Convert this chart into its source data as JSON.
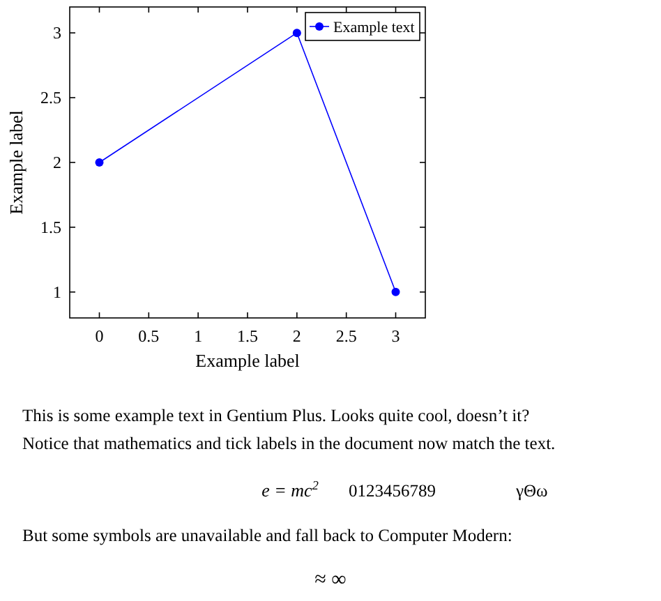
{
  "chart_data": {
    "type": "line",
    "xlabel": "Example label",
    "ylabel": "Example label",
    "x": [
      0,
      2,
      3
    ],
    "series": [
      {
        "name": "Example text",
        "color": "#0000ff",
        "values": [
          2,
          3,
          1
        ]
      }
    ],
    "xlim": [
      -0.3,
      3.3
    ],
    "xticks": [
      0,
      0.5,
      1,
      1.5,
      2,
      2.5,
      3
    ],
    "ylim": [
      0.8,
      3.2
    ],
    "yticks": [
      1,
      1.5,
      2,
      2.5,
      3
    ],
    "grid": false,
    "legend": "top right",
    "marker": "circle",
    "line_style": "solid",
    "annotations": [
      "This is some example text in Gentium Plus. Looks quite cool, doesn’t it?",
      "Notice that mathematics and tick labels in the document now match the text.",
      "e = mc$^{2}$",
      "0123456789",
      "γΘω",
      "But some symbols are unavailable and fall back to Computer Modern:",
      "≈ ∞"
    ]
  }
}
